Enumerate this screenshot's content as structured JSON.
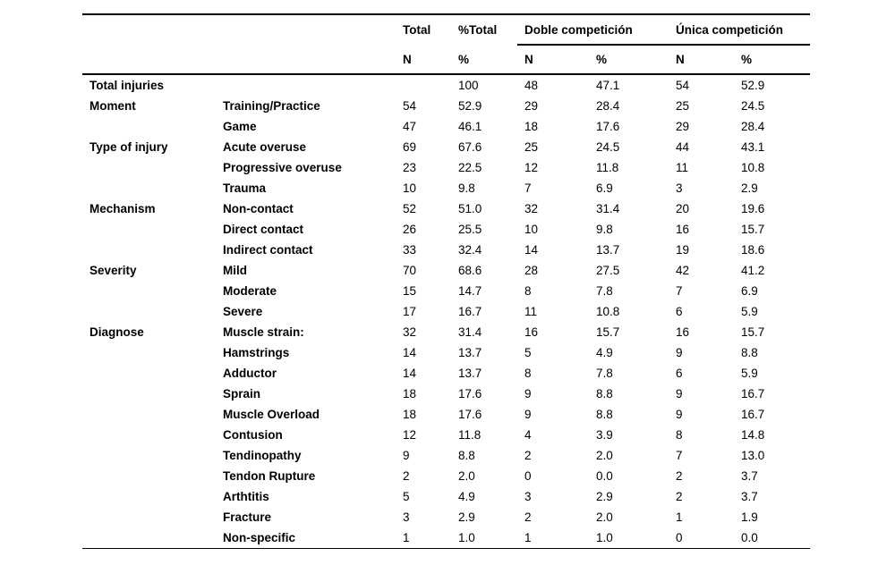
{
  "table": {
    "header": {
      "col_total": "Total",
      "col_pct_total": "%Total",
      "group_doble": "Doble competición",
      "group_unica": "Única competición",
      "sub_n": "N",
      "sub_pct": "%"
    },
    "rows": [
      {
        "category": "Total injuries",
        "item": "",
        "total_n": "",
        "total_pct": "100",
        "doble_n": "48",
        "doble_pct": "47.1",
        "unica_n": "54",
        "unica_pct": "52.9"
      },
      {
        "category": "Moment",
        "item": "Training/Practice",
        "total_n": "54",
        "total_pct": "52.9",
        "doble_n": "29",
        "doble_pct": "28.4",
        "unica_n": "25",
        "unica_pct": "24.5"
      },
      {
        "category": "",
        "item": "Game",
        "total_n": "47",
        "total_pct": "46.1",
        "doble_n": "18",
        "doble_pct": "17.6",
        "unica_n": "29",
        "unica_pct": "28.4"
      },
      {
        "category": "Type of injury",
        "item": "Acute overuse",
        "total_n": "69",
        "total_pct": "67.6",
        "doble_n": "25",
        "doble_pct": "24.5",
        "unica_n": "44",
        "unica_pct": "43.1"
      },
      {
        "category": "",
        "item": "Progressive overuse",
        "total_n": "23",
        "total_pct": "22.5",
        "doble_n": "12",
        "doble_pct": "11.8",
        "unica_n": "11",
        "unica_pct": "10.8"
      },
      {
        "category": "",
        "item": "Trauma",
        "total_n": "10",
        "total_pct": "9.8",
        "doble_n": "7",
        "doble_pct": "6.9",
        "unica_n": "3",
        "unica_pct": "2.9"
      },
      {
        "category": "Mechanism",
        "item": "Non-contact",
        "total_n": "52",
        "total_pct": "51.0",
        "doble_n": "32",
        "doble_pct": "31.4",
        "unica_n": "20",
        "unica_pct": "19.6"
      },
      {
        "category": "",
        "item": "Direct contact",
        "total_n": "26",
        "total_pct": "25.5",
        "doble_n": "10",
        "doble_pct": "9.8",
        "unica_n": "16",
        "unica_pct": "15.7"
      },
      {
        "category": "",
        "item": "Indirect contact",
        "total_n": "33",
        "total_pct": "32.4",
        "doble_n": "14",
        "doble_pct": "13.7",
        "unica_n": "19",
        "unica_pct": "18.6"
      },
      {
        "category": "Severity",
        "item": "Mild",
        "total_n": "70",
        "total_pct": "68.6",
        "doble_n": "28",
        "doble_pct": "27.5",
        "unica_n": "42",
        "unica_pct": "41.2"
      },
      {
        "category": "",
        "item": "Moderate",
        "total_n": "15",
        "total_pct": "14.7",
        "doble_n": "8",
        "doble_pct": "7.8",
        "unica_n": "7",
        "unica_pct": "6.9"
      },
      {
        "category": "",
        "item": "Severe",
        "total_n": "17",
        "total_pct": "16.7",
        "doble_n": "11",
        "doble_pct": "10.8",
        "unica_n": "6",
        "unica_pct": "5.9"
      },
      {
        "category": "Diagnose",
        "item": "Muscle strain:",
        "total_n": "32",
        "total_pct": "31.4",
        "doble_n": "16",
        "doble_pct": "15.7",
        "unica_n": "16",
        "unica_pct": "15.7"
      },
      {
        "category": "",
        "item": "Hamstrings",
        "total_n": "14",
        "total_pct": "13.7",
        "doble_n": "5",
        "doble_pct": "4.9",
        "unica_n": "9",
        "unica_pct": "8.8"
      },
      {
        "category": "",
        "item": "Adductor",
        "total_n": "14",
        "total_pct": "13.7",
        "doble_n": "8",
        "doble_pct": "7.8",
        "unica_n": "6",
        "unica_pct": "5.9"
      },
      {
        "category": "",
        "item": "Sprain",
        "total_n": "18",
        "total_pct": "17.6",
        "doble_n": "9",
        "doble_pct": "8.8",
        "unica_n": "9",
        "unica_pct": "16.7"
      },
      {
        "category": "",
        "item": "Muscle Overload",
        "total_n": "18",
        "total_pct": "17.6",
        "doble_n": "9",
        "doble_pct": "8.8",
        "unica_n": "9",
        "unica_pct": "16.7"
      },
      {
        "category": "",
        "item": "Contusion",
        "total_n": "12",
        "total_pct": "11.8",
        "doble_n": "4",
        "doble_pct": "3.9",
        "unica_n": "8",
        "unica_pct": "14.8"
      },
      {
        "category": "",
        "item": "Tendinopathy",
        "total_n": "9",
        "total_pct": "8.8",
        "doble_n": "2",
        "doble_pct": "2.0",
        "unica_n": "7",
        "unica_pct": "13.0"
      },
      {
        "category": "",
        "item": "Tendon Rupture",
        "total_n": "2",
        "total_pct": "2.0",
        "doble_n": "0",
        "doble_pct": "0.0",
        "unica_n": "2",
        "unica_pct": "3.7"
      },
      {
        "category": "",
        "item": "Arthtitis",
        "total_n": "5",
        "total_pct": "4.9",
        "doble_n": "3",
        "doble_pct": "2.9",
        "unica_n": "2",
        "unica_pct": "3.7"
      },
      {
        "category": "",
        "item": "Fracture",
        "total_n": "3",
        "total_pct": "2.9",
        "doble_n": "2",
        "doble_pct": "2.0",
        "unica_n": "1",
        "unica_pct": "1.9"
      },
      {
        "category": "",
        "item": "Non-specific",
        "total_n": "1",
        "total_pct": "1.0",
        "doble_n": "1",
        "doble_pct": "1.0",
        "unica_n": "0",
        "unica_pct": "0.0"
      }
    ]
  }
}
